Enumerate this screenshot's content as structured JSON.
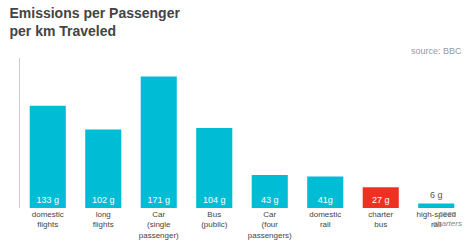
{
  "chart_data": {
    "type": "bar",
    "title": "Emissions per Passenger\nper km Traveled",
    "categories": [
      "domestic\nflights",
      "long\nflights",
      "Car\n(single\npassenger)",
      "Bus\n(public)",
      "Car\n(four\npassengers)",
      "domestic\nrail",
      "charter\nbus",
      "high-speed\nrail"
    ],
    "values": [
      133,
      102,
      171,
      104,
      43,
      41,
      27,
      6
    ],
    "value_labels": [
      "133 g",
      "102 g",
      "171 g",
      "104 g",
      "43 g",
      "41g",
      "27 g",
      "6 g"
    ],
    "data_labels": true,
    "colors": [
      "#00bcd4",
      "#00bcd4",
      "#00bcd4",
      "#00bcd4",
      "#00bcd4",
      "#00bcd4",
      "#f03020",
      "#00bcd4"
    ],
    "ylim": [
      0,
      195
    ],
    "grid": false,
    "tick_labels": "x",
    "annotations": [
      "source: BBC",
      "coco\ncharters"
    ]
  }
}
